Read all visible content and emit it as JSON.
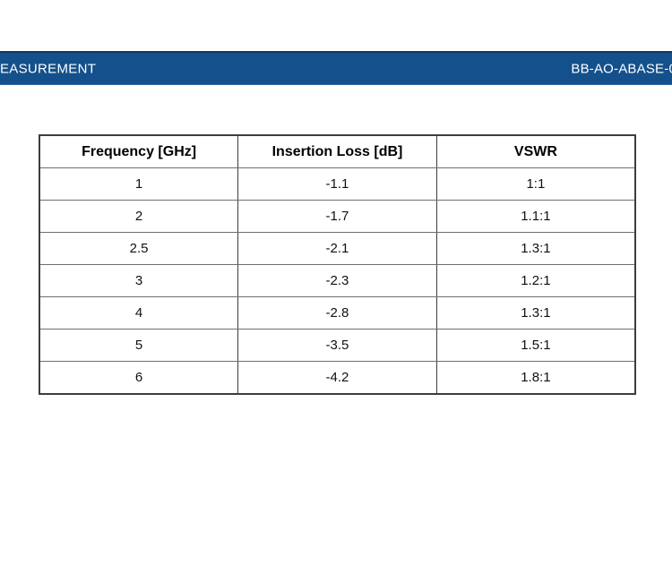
{
  "header_bar": {
    "left_text": "EASUREMENT",
    "right_text": "BB-AO-ABASE-0",
    "background_color": "#14508C",
    "top_edge_color": "#0C3A66",
    "text_color": "#FFFFFF"
  },
  "table": {
    "columns": [
      "Frequency [GHz]",
      "Insertion Loss [dB]",
      "VSWR"
    ],
    "rows": [
      [
        "1",
        "-1.1",
        "1:1"
      ],
      [
        "2",
        "-1.7",
        "1.1:1"
      ],
      [
        "2.5",
        "-2.1",
        "1.3:1"
      ],
      [
        "3",
        "-2.3",
        "1.2:1"
      ],
      [
        "4",
        "-2.8",
        "1.3:1"
      ],
      [
        "5",
        "-3.5",
        "1.5:1"
      ],
      [
        "6",
        "-4.2",
        "1.8:1"
      ]
    ]
  }
}
